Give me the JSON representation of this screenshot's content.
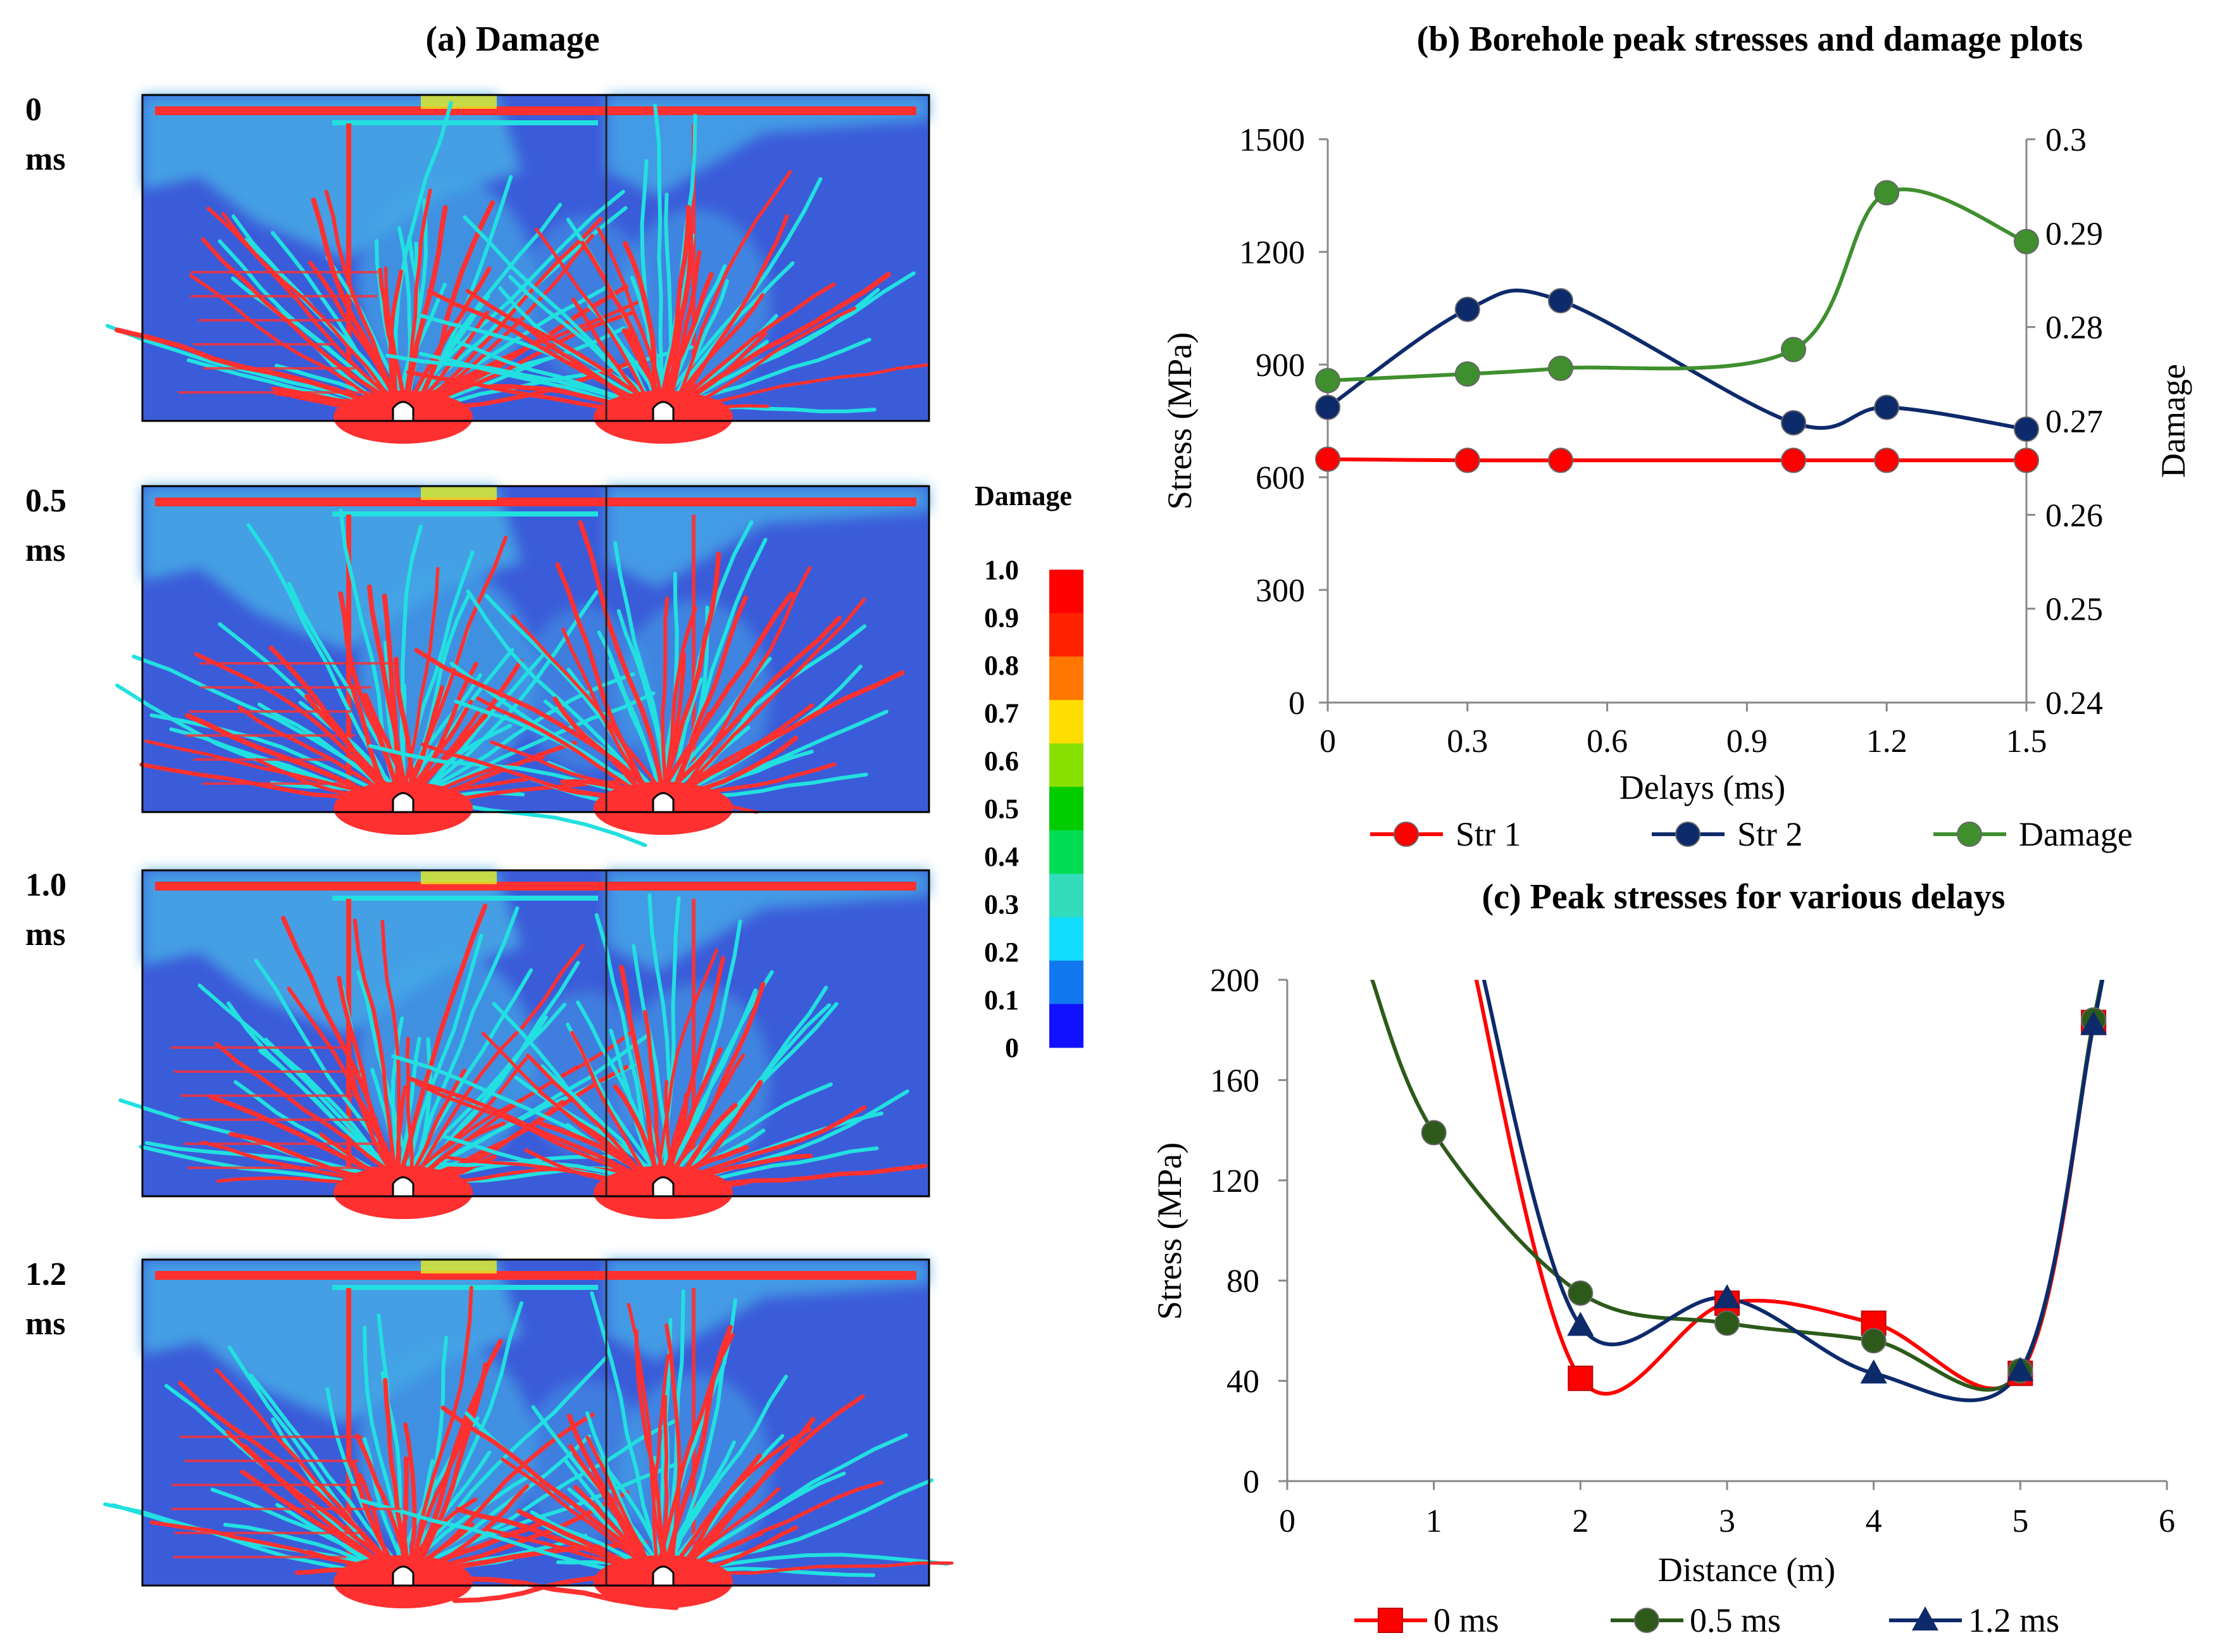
{
  "panel_a": {
    "title": "(a)   Damage",
    "delay_labels": [
      {
        "value": "0",
        "unit": "ms"
      },
      {
        "value": "0.5",
        "unit": "ms"
      },
      {
        "value": "1.0",
        "unit": "ms"
      },
      {
        "value": "1.2",
        "unit": "ms"
      }
    ],
    "colorbar": {
      "title": "Damage",
      "ticks": [
        "1.0",
        "0.9",
        "0.8",
        "0.7",
        "0.6",
        "0.5",
        "0.4",
        "0.3",
        "0.2",
        "0.1",
        "0"
      ],
      "bands": [
        "#ff0000",
        "#ff2200",
        "#ff7700",
        "#ffdd00",
        "#88e000",
        "#00cc00",
        "#00dd55",
        "#33ddbb",
        "#11ddff",
        "#1177ee",
        "#1111ff"
      ]
    },
    "colors": {
      "background": "#3b5cd9",
      "light_zone": "#45a6e6",
      "crack": "#ff3030",
      "cyan": "#22e0e0",
      "yellow": "#e6ee22"
    }
  },
  "chart_data": [
    {
      "id": "b",
      "type": "line",
      "title": "(b)   Borehole peak stresses and damage plots",
      "xlabel": "Delays (ms)",
      "ylabel": "Stress (MPa)",
      "y2label": "Damage",
      "xlim": [
        0,
        1.5
      ],
      "ylim": [
        0,
        1500
      ],
      "y2lim": [
        0.24,
        0.3
      ],
      "xticks": [
        "0",
        "0.3",
        "0.6",
        "0.9",
        "1.2",
        "1.5"
      ],
      "yticks": [
        "0",
        "300",
        "600",
        "900",
        "1200",
        "1500"
      ],
      "y2ticks": [
        "0.24",
        "0.25",
        "0.26",
        "0.27",
        "0.28",
        "0.29",
        "0.3"
      ],
      "x": [
        0,
        0.3,
        0.5,
        1.0,
        1.2,
        1.5
      ],
      "series": [
        {
          "name": "Str 1",
          "axis": "left",
          "color": "#ff0000",
          "marker": "circle",
          "values": [
            648,
            645,
            645,
            645,
            645,
            645
          ]
        },
        {
          "name": "Str 2",
          "axis": "left",
          "color": "#0d2a6b",
          "marker": "circle",
          "values": [
            786,
            1047,
            1070,
            745,
            786,
            728
          ]
        },
        {
          "name": "Damage",
          "axis": "right",
          "color": "#3f8f2f",
          "marker": "circle",
          "values": [
            0.2743,
            0.275,
            0.2756,
            0.2776,
            0.2943,
            0.2891
          ]
        }
      ],
      "legend": "bottom"
    },
    {
      "id": "c",
      "type": "line",
      "title": "(c)   Peak stresses for various delays",
      "xlabel": "Distance (m)",
      "ylabel": "Stress (MPa)",
      "xlim": [
        0,
        6
      ],
      "ylim": [
        0,
        200
      ],
      "xticks": [
        "0",
        "1",
        "2",
        "3",
        "4",
        "5",
        "6"
      ],
      "yticks": [
        "0",
        "40",
        "80",
        "120",
        "160",
        "200"
      ],
      "series": [
        {
          "name": "0 ms",
          "color": "#ff0000",
          "marker": "square",
          "x": [
            2,
            3,
            4,
            5,
            5.5
          ],
          "values": [
            41,
            71,
            63,
            43,
            183
          ],
          "curve_start": [
            1.25,
            210
          ]
        },
        {
          "name": "0.5 ms",
          "color": "#2d5a1a",
          "marker": "circle",
          "x": [
            1,
            2,
            3,
            4,
            5,
            5.5
          ],
          "values": [
            139,
            75,
            63,
            56,
            44,
            184
          ],
          "curve_start": [
            0.55,
            205
          ]
        },
        {
          "name": "1.2 ms",
          "color": "#0d2a6b",
          "marker": "triangle",
          "x": [
            2,
            3,
            4,
            5,
            5.5
          ],
          "values": [
            62,
            73,
            43,
            44,
            182
          ],
          "curve_start": [
            1.3,
            210
          ]
        }
      ],
      "legend": "bottom"
    }
  ]
}
